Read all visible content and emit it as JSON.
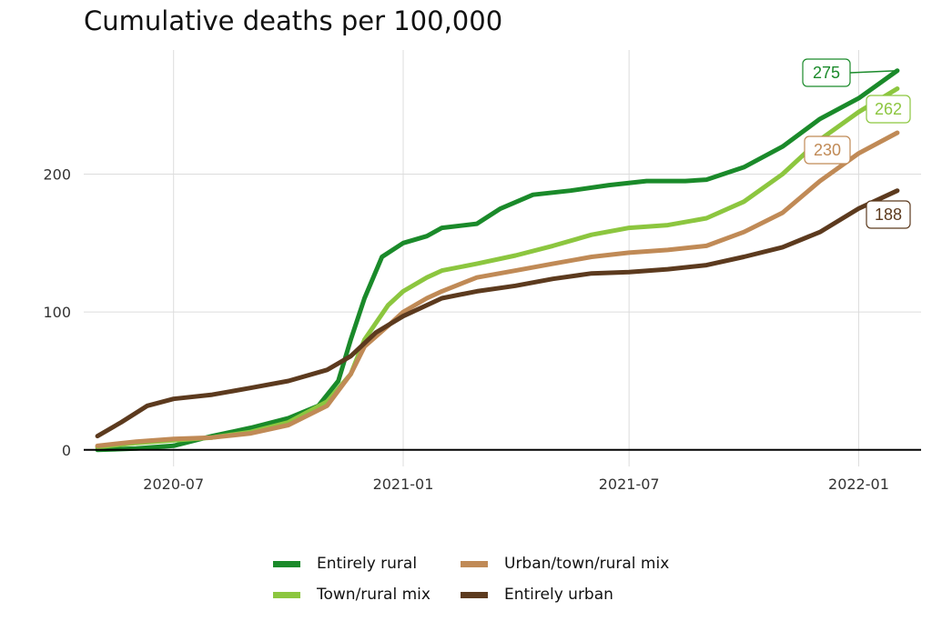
{
  "chart_data": {
    "type": "line",
    "title": "Cumulative deaths per 100,000",
    "xlabel": "",
    "ylabel": "",
    "xlim": [
      "2020-04-20",
      "2022-02-20"
    ],
    "ylim": [
      -12,
      290
    ],
    "x_ticks": [
      "2020-07",
      "2021-01",
      "2021-07",
      "2022-01"
    ],
    "y_ticks": [
      0,
      100,
      200
    ],
    "grid": true,
    "legend_position": "bottom",
    "series": [
      {
        "name": "Entirely rural",
        "color": "#1a8a2a",
        "end_label": "275",
        "points": [
          [
            "2020-05-01",
            0
          ],
          [
            "2020-06-01",
            1
          ],
          [
            "2020-07-01",
            3
          ],
          [
            "2020-08-01",
            10
          ],
          [
            "2020-09-01",
            16
          ],
          [
            "2020-10-01",
            23
          ],
          [
            "2020-10-25",
            32
          ],
          [
            "2020-11-10",
            50
          ],
          [
            "2020-11-20",
            80
          ],
          [
            "2020-12-01",
            110
          ],
          [
            "2020-12-15",
            140
          ],
          [
            "2021-01-01",
            150
          ],
          [
            "2021-01-20",
            155
          ],
          [
            "2021-02-01",
            161
          ],
          [
            "2021-03-01",
            164
          ],
          [
            "2021-03-20",
            175
          ],
          [
            "2021-04-15",
            185
          ],
          [
            "2021-05-15",
            188
          ],
          [
            "2021-06-15",
            192
          ],
          [
            "2021-07-15",
            195
          ],
          [
            "2021-08-15",
            195
          ],
          [
            "2021-09-01",
            196
          ],
          [
            "2021-10-01",
            205
          ],
          [
            "2021-11-01",
            220
          ],
          [
            "2021-12-01",
            240
          ],
          [
            "2022-01-01",
            255
          ],
          [
            "2022-02-01",
            275
          ]
        ]
      },
      {
        "name": "Town/rural mix",
        "color": "#8cc63f",
        "end_label": "262",
        "points": [
          [
            "2020-05-01",
            2
          ],
          [
            "2020-06-01",
            5
          ],
          [
            "2020-07-01",
            7
          ],
          [
            "2020-08-01",
            9
          ],
          [
            "2020-09-01",
            13
          ],
          [
            "2020-10-01",
            20
          ],
          [
            "2020-11-01",
            35
          ],
          [
            "2020-11-20",
            55
          ],
          [
            "2020-12-01",
            80
          ],
          [
            "2020-12-20",
            105
          ],
          [
            "2021-01-01",
            115
          ],
          [
            "2021-01-20",
            125
          ],
          [
            "2021-02-01",
            130
          ],
          [
            "2021-03-01",
            135
          ],
          [
            "2021-04-01",
            141
          ],
          [
            "2021-05-01",
            148
          ],
          [
            "2021-06-01",
            156
          ],
          [
            "2021-07-01",
            161
          ],
          [
            "2021-08-01",
            163
          ],
          [
            "2021-09-01",
            168
          ],
          [
            "2021-10-01",
            180
          ],
          [
            "2021-11-01",
            200
          ],
          [
            "2021-12-01",
            225
          ],
          [
            "2022-01-01",
            245
          ],
          [
            "2022-02-01",
            262
          ]
        ]
      },
      {
        "name": "Urban/town/rural mix",
        "color": "#c08a56",
        "end_label": "230",
        "points": [
          [
            "2020-05-01",
            3
          ],
          [
            "2020-06-01",
            6
          ],
          [
            "2020-07-01",
            8
          ],
          [
            "2020-08-01",
            9
          ],
          [
            "2020-09-01",
            12
          ],
          [
            "2020-10-01",
            18
          ],
          [
            "2020-11-01",
            32
          ],
          [
            "2020-11-20",
            55
          ],
          [
            "2020-12-01",
            75
          ],
          [
            "2020-12-20",
            90
          ],
          [
            "2021-01-01",
            100
          ],
          [
            "2021-01-20",
            110
          ],
          [
            "2021-02-01",
            115
          ],
          [
            "2021-03-01",
            125
          ],
          [
            "2021-04-01",
            130
          ],
          [
            "2021-05-01",
            135
          ],
          [
            "2021-06-01",
            140
          ],
          [
            "2021-07-01",
            143
          ],
          [
            "2021-08-01",
            145
          ],
          [
            "2021-09-01",
            148
          ],
          [
            "2021-10-01",
            158
          ],
          [
            "2021-11-01",
            172
          ],
          [
            "2021-12-01",
            195
          ],
          [
            "2022-01-01",
            215
          ],
          [
            "2022-02-01",
            230
          ]
        ]
      },
      {
        "name": "Entirely urban",
        "color": "#5c3a1e",
        "end_label": "188",
        "points": [
          [
            "2020-05-01",
            10
          ],
          [
            "2020-05-20",
            20
          ],
          [
            "2020-06-10",
            32
          ],
          [
            "2020-07-01",
            37
          ],
          [
            "2020-08-01",
            40
          ],
          [
            "2020-09-01",
            45
          ],
          [
            "2020-10-01",
            50
          ],
          [
            "2020-11-01",
            58
          ],
          [
            "2020-11-20",
            68
          ],
          [
            "2020-12-10",
            85
          ],
          [
            "2021-01-01",
            97
          ],
          [
            "2021-02-01",
            110
          ],
          [
            "2021-03-01",
            115
          ],
          [
            "2021-04-01",
            119
          ],
          [
            "2021-05-01",
            124
          ],
          [
            "2021-06-01",
            128
          ],
          [
            "2021-07-01",
            129
          ],
          [
            "2021-08-01",
            131
          ],
          [
            "2021-09-01",
            134
          ],
          [
            "2021-10-01",
            140
          ],
          [
            "2021-11-01",
            147
          ],
          [
            "2021-12-01",
            158
          ],
          [
            "2022-01-01",
            175
          ],
          [
            "2022-02-01",
            188
          ]
        ]
      }
    ]
  }
}
